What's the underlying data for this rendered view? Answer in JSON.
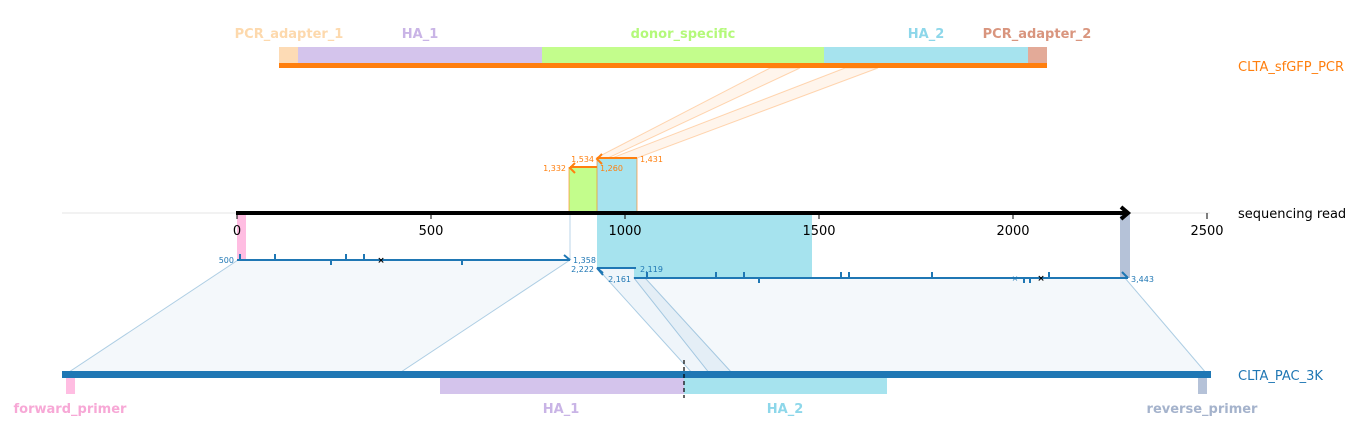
{
  "colors": {
    "pcr": "#ff7f0e",
    "read": "#000000",
    "ref": "#1f77b4",
    "pcr_adapter_1": "#fddbb5",
    "ha_1": "#d4c4ec",
    "donor_specific": "#c3fd8c",
    "ha_2": "#a6e3ee",
    "pcr_adapter_2": "#e3aa98",
    "forward_primer": "#ffbde2",
    "reverse_primer": "#b5c2d8"
  },
  "pcr_track": {
    "name": "CLTA_sfGFP_PCR",
    "features": [
      {
        "name": "PCR_adapter_1",
        "color_key": "pcr_adapter_1",
        "label_color": "#fdd9ad"
      },
      {
        "name": "HA_1",
        "color_key": "ha_1",
        "label_color": "#c9b4e6"
      },
      {
        "name": "donor_specific",
        "color_key": "donor_specific",
        "label_color": "#b4f97a"
      },
      {
        "name": "HA_2",
        "color_key": "ha_2",
        "label_color": "#8dd7ea"
      },
      {
        "name": "PCR_adapter_2",
        "color_key": "pcr_adapter_2",
        "label_color": "#d9957e"
      }
    ]
  },
  "read_track": {
    "name": "sequencing read",
    "ticks": [
      "0",
      "500",
      "1000",
      "1500",
      "2000",
      "2500"
    ]
  },
  "ref_track": {
    "name": "CLTA_PAC_3K",
    "features": [
      {
        "name": "forward_primer",
        "color_key": "forward_primer",
        "label_color": "#f7a8d6"
      },
      {
        "name": "HA_1",
        "color_key": "ha_1",
        "label_color": "#c9b4e6"
      },
      {
        "name": "HA_2",
        "color_key": "ha_2",
        "label_color": "#8dd7ea"
      },
      {
        "name": "reverse_primer",
        "color_key": "reverse_primer",
        "label_color": "#a5b3cc"
      }
    ]
  },
  "alignments": {
    "ref_1": {
      "start": "500",
      "end": "1,358"
    },
    "ref_2": {
      "start": "2,222",
      "end": "2,119"
    },
    "ref_3": {
      "start": "2,161",
      "end": "3,443"
    },
    "donor_1": {
      "start": "1,332",
      "end": "1,260"
    },
    "donor_2": {
      "start": "1,534",
      "end": "1,431"
    }
  }
}
